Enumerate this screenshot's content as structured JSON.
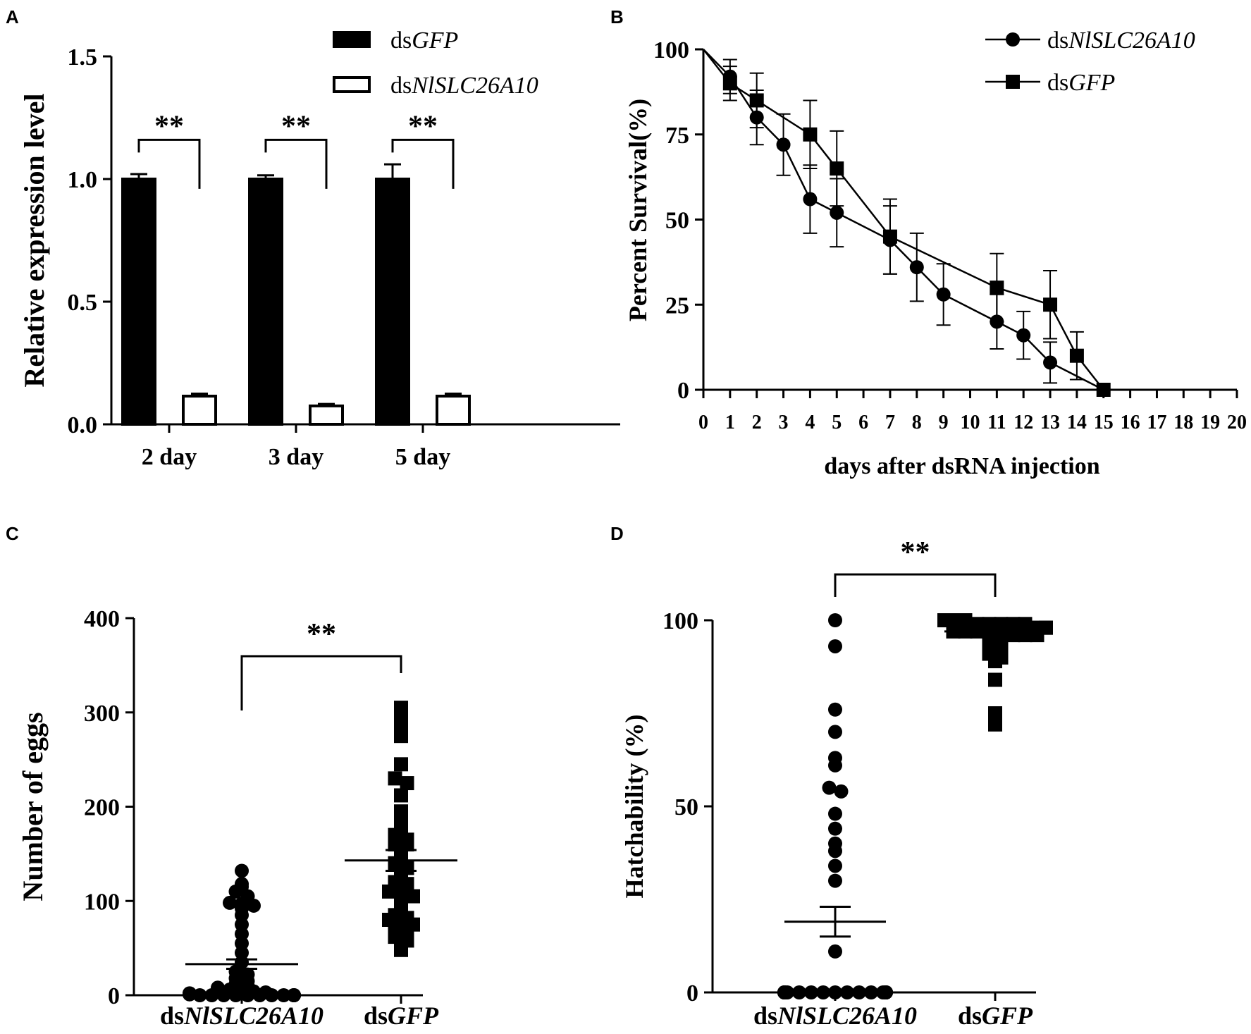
{
  "chart_data": [
    {
      "panel": "A",
      "type": "bar",
      "ylabel": "Relative expression level",
      "ylim": [
        0,
        1.5
      ],
      "yticks": [
        "0.0",
        "0.5",
        "1.0",
        "1.5"
      ],
      "categories": [
        "2 day",
        "3 day",
        "5 day"
      ],
      "series": [
        {
          "name": "dsGFP",
          "name_prefix": "ds",
          "name_italic": "GFP",
          "fill": "#000000",
          "values": [
            1.0,
            1.0,
            1.0
          ],
          "errors": [
            0.02,
            0.015,
            0.06
          ]
        },
        {
          "name": "dsNlSLC26A10",
          "name_prefix": "ds",
          "name_italic": "NlSLC26A10",
          "fill": "#ffffff",
          "values": [
            0.115,
            0.075,
            0.115
          ],
          "errors": [
            0.01,
            0.008,
            0.01
          ]
        }
      ],
      "significance": [
        "**",
        "**",
        "**"
      ]
    },
    {
      "panel": "B",
      "type": "line",
      "xlabel": "days after dsRNA injection",
      "ylabel": "Percent Survival(%)",
      "xlim": [
        0,
        20
      ],
      "ylim": [
        0,
        100
      ],
      "xticks": [
        "0",
        "1",
        "2",
        "3",
        "4",
        "5",
        "6",
        "7",
        "8",
        "9",
        "10",
        "11",
        "12",
        "13",
        "14",
        "15",
        "16",
        "17",
        "18",
        "19",
        "20"
      ],
      "yticks": [
        "0",
        "25",
        "50",
        "75",
        "100"
      ],
      "series": [
        {
          "name": "dsNlSLC26A10",
          "name_prefix": "ds",
          "name_italic": "NlSLC26A10",
          "marker": "circle",
          "x": [
            0,
            1,
            2,
            3,
            4,
            5,
            7,
            8,
            9,
            11,
            12,
            13,
            15
          ],
          "y": [
            100,
            92,
            80,
            72,
            56,
            52,
            44,
            36,
            28,
            20,
            16,
            8,
            0
          ],
          "err": [
            0,
            5,
            8,
            9,
            10,
            10,
            10,
            10,
            9,
            8,
            7,
            6,
            0
          ]
        },
        {
          "name": "dsGFP",
          "name_prefix": "ds",
          "name_italic": "GFP",
          "marker": "square",
          "x": [
            0,
            1,
            2,
            4,
            5,
            7,
            11,
            13,
            14,
            15
          ],
          "y": [
            100,
            90,
            85,
            75,
            65,
            45,
            30,
            25,
            10,
            0
          ],
          "err": [
            0,
            5,
            8,
            10,
            11,
            11,
            10,
            10,
            7,
            0
          ]
        }
      ]
    },
    {
      "panel": "C",
      "type": "scatter",
      "ylabel": "Number of eggs",
      "ylim": [
        0,
        400
      ],
      "yticks": [
        "0",
        "100",
        "200",
        "300",
        "400"
      ],
      "categories": [
        "dsNlSLC26A10",
        "dsGFP"
      ],
      "category_parts": [
        {
          "prefix": "ds",
          "italic": "NlSLC26A10"
        },
        {
          "prefix": "ds",
          "italic": "GFP"
        }
      ],
      "groups": [
        {
          "name": "dsNlSLC26A10",
          "marker": "circle",
          "mean": 33,
          "sem": 5,
          "values": [
            132,
            118,
            115,
            110,
            105,
            98,
            97,
            95,
            92,
            85,
            75,
            65,
            55,
            45,
            35,
            25,
            22,
            18,
            15,
            12,
            10,
            8,
            6,
            5,
            4,
            3,
            2,
            2,
            1,
            1,
            1,
            0,
            0,
            0,
            0,
            0,
            0,
            0,
            0,
            0,
            0,
            0,
            0,
            0
          ]
        },
        {
          "name": "dsGFP",
          "marker": "square",
          "mean": 143,
          "sem": 11,
          "values": [
            305,
            295,
            285,
            275,
            245,
            230,
            225,
            212,
            195,
            190,
            178,
            175,
            170,
            165,
            160,
            160,
            155,
            150,
            145,
            140,
            135,
            130,
            125,
            120,
            118,
            115,
            112,
            110,
            108,
            105,
            100,
            95,
            90,
            85,
            82,
            80,
            78,
            75,
            72,
            70,
            65,
            62,
            58,
            55,
            48
          ]
        }
      ],
      "significance": "**"
    },
    {
      "panel": "D",
      "type": "scatter",
      "ylabel": "Hatchability (%)",
      "ylim": [
        0,
        100
      ],
      "yticks": [
        "0",
        "50",
        "100"
      ],
      "categories": [
        "dsNlSLC26A10",
        "dsGFP"
      ],
      "category_parts": [
        {
          "prefix": "ds",
          "italic": "NlSLC26A10"
        },
        {
          "prefix": "ds",
          "italic": "GFP"
        }
      ],
      "groups": [
        {
          "name": "dsNlSLC26A10",
          "marker": "circle",
          "mean": 19,
          "sem": 4,
          "values": [
            100,
            93,
            76,
            70,
            63,
            61,
            55,
            54,
            48,
            44,
            40,
            38,
            34,
            30,
            11,
            0,
            0,
            0,
            0,
            0,
            0,
            0,
            0,
            0,
            0,
            0,
            0,
            0,
            0,
            0,
            0,
            0,
            0,
            0,
            0,
            0,
            0,
            0
          ]
        },
        {
          "name": "dsGFP",
          "marker": "square",
          "mean": 97,
          "sem": 1,
          "values": [
            100,
            100,
            100,
            100,
            100,
            100,
            99,
            99,
            99,
            99,
            99,
            98,
            98,
            98,
            98,
            98,
            97,
            97,
            97,
            97,
            96,
            96,
            96,
            96,
            95,
            94,
            93,
            92,
            91,
            90,
            89,
            84,
            75,
            72
          ]
        }
      ],
      "significance": "**"
    }
  ]
}
